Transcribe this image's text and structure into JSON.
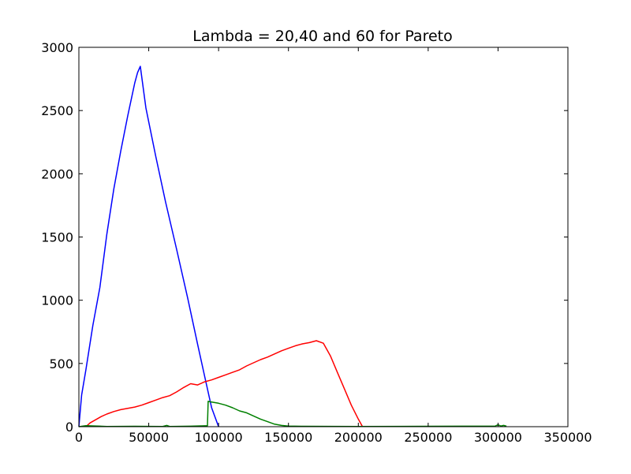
{
  "chart_data": {
    "type": "line",
    "title": "Lambda = 20,40 and 60 for Pareto",
    "xlabel": "",
    "ylabel": "",
    "xlim": [
      0,
      350000
    ],
    "ylim": [
      0,
      3000
    ],
    "xticks": [
      0,
      50000,
      100000,
      150000,
      200000,
      250000,
      300000,
      350000
    ],
    "yticks": [
      0,
      500,
      1000,
      1500,
      2000,
      2500,
      3000
    ],
    "grid": false,
    "legend": "none",
    "series": [
      {
        "color": "#0000ff",
        "x": [
          0,
          2000,
          5000,
          10000,
          15000,
          20000,
          25000,
          30000,
          35000,
          40000,
          42000,
          44000,
          48000,
          55000,
          62000,
          70000,
          78000,
          85000,
          90000,
          95000,
          100000
        ],
        "y": [
          0,
          250,
          450,
          800,
          1100,
          1520,
          1880,
          2180,
          2460,
          2720,
          2800,
          2850,
          2520,
          2140,
          1780,
          1400,
          1010,
          650,
          400,
          150,
          0
        ]
      },
      {
        "color": "#ff0000",
        "x": [
          5000,
          8000,
          12000,
          16000,
          20000,
          25000,
          30000,
          35000,
          40000,
          45000,
          50000,
          55000,
          60000,
          65000,
          70000,
          75000,
          80000,
          85000,
          90000,
          95000,
          100000,
          105000,
          110000,
          115000,
          120000,
          125000,
          130000,
          135000,
          140000,
          145000,
          150000,
          155000,
          160000,
          165000,
          170000,
          175000,
          180000,
          185000,
          190000,
          195000,
          200000,
          203000
        ],
        "y": [
          0,
          30,
          55,
          80,
          100,
          120,
          135,
          145,
          155,
          170,
          190,
          210,
          230,
          245,
          275,
          310,
          340,
          330,
          355,
          370,
          390,
          410,
          430,
          450,
          480,
          505,
          530,
          550,
          575,
          600,
          620,
          640,
          655,
          665,
          680,
          660,
          560,
          430,
          300,
          170,
          60,
          0
        ]
      },
      {
        "color": "#008000",
        "x": [
          0,
          5000,
          20000,
          40000,
          60000,
          63000,
          65000,
          80000,
          88000,
          92000,
          92500,
          95000,
          100000,
          105000,
          110000,
          115000,
          120000,
          125000,
          130000,
          135000,
          140000,
          145000,
          150000,
          160000,
          200000,
          250000,
          298000,
          300000,
          302000,
          304000,
          306000
        ],
        "y": [
          0,
          8,
          2,
          3,
          2,
          10,
          2,
          4,
          6,
          8,
          200,
          195,
          185,
          170,
          150,
          125,
          110,
          85,
          60,
          40,
          20,
          10,
          5,
          3,
          2,
          3,
          5,
          15,
          5,
          10,
          4
        ]
      }
    ]
  }
}
